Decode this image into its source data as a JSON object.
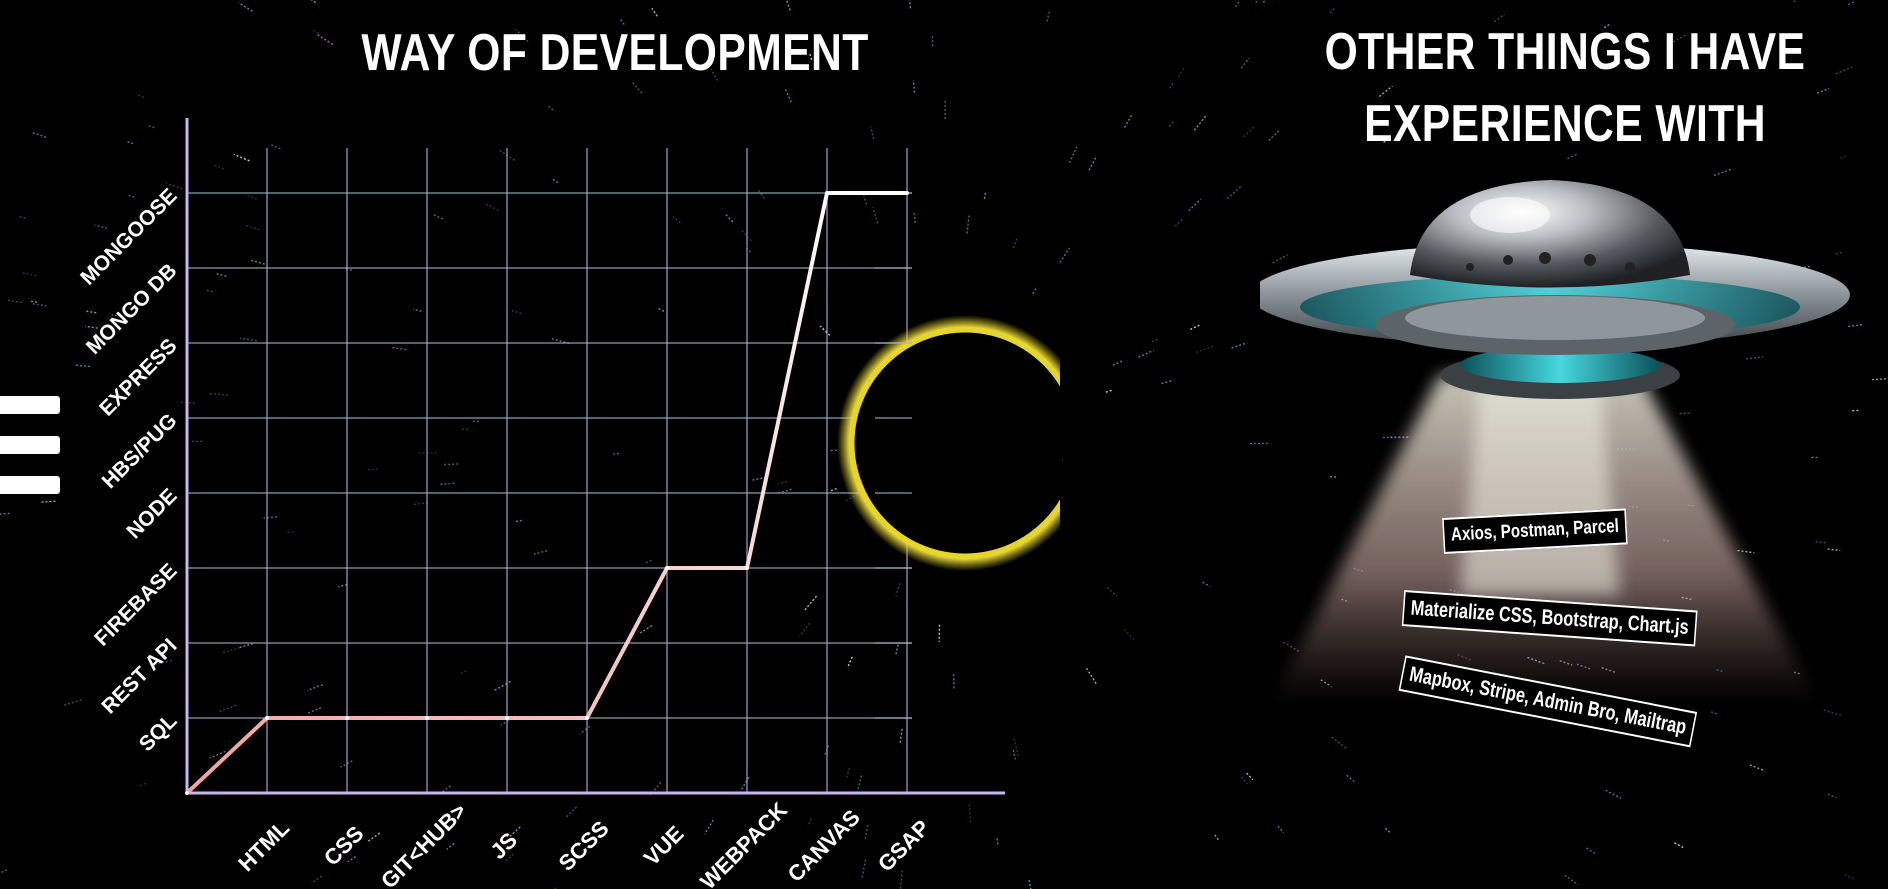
{
  "page": {
    "left_title": "WAY OF DEVELOPMENT",
    "right_title_line1": "OTHER THINGS I HAVE",
    "right_title_line2": "EXPERIENCE WITH"
  },
  "menu": {
    "icon": "hamburger-menu-icon"
  },
  "chart_data": {
    "type": "line",
    "title": "WAY OF DEVELOPMENT",
    "categories": [
      "HTML",
      "CSS",
      "GIT<HUB>",
      "JS",
      "SCSS",
      "VUE",
      "WEBPACK",
      "CANVAS",
      "GSAP"
    ],
    "y_categories": [
      "SQL",
      "REST API",
      "FIREBASE",
      "NODE",
      "HBS/PUG",
      "EXPRESS",
      "MONGO DB",
      "MONGOOSE"
    ],
    "points": [
      {
        "x": 0,
        "y": 0
      },
      {
        "x": 1,
        "y": 1
      },
      {
        "x": 2,
        "y": 1
      },
      {
        "x": 3,
        "y": 1
      },
      {
        "x": 4,
        "y": 1
      },
      {
        "x": 5,
        "y": 1
      },
      {
        "x": 6,
        "y": 3
      },
      {
        "x": 7,
        "y": 3
      },
      {
        "x": 8,
        "y": 8
      },
      {
        "x": 9,
        "y": 8
      }
    ],
    "grid": true,
    "gradient_colors": [
      "#f0a0a0",
      "#ffffff"
    ]
  },
  "decor": {
    "eclipse_ring_color": "#d8c81a",
    "ufo_beam_color": "#cfcfc0"
  },
  "tags": [
    "Axios, Postman, Parcel",
    "Materialize CSS, Bootstrap, Chart.js",
    "Mapbox, Stripe, Admin Bro, Mailtrap"
  ]
}
